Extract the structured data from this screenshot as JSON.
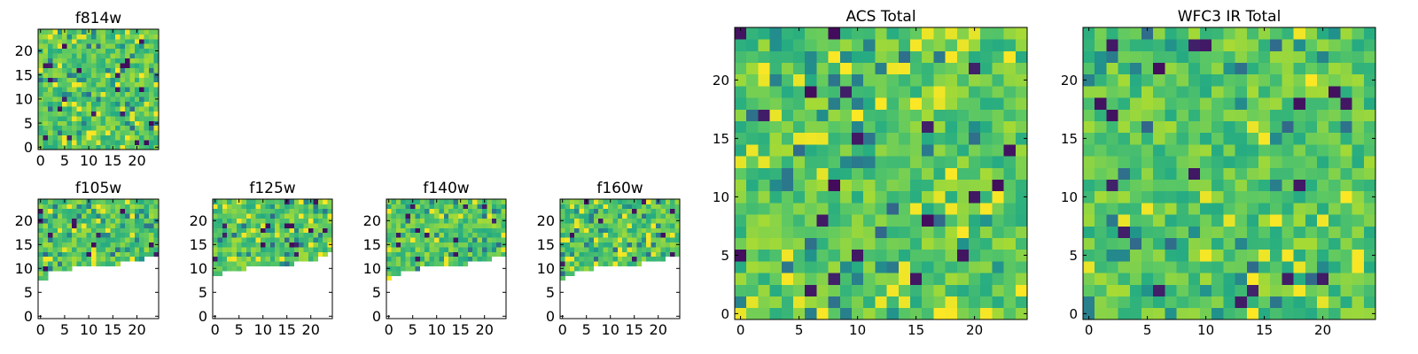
{
  "chart_data": [
    {
      "type": "heatmap",
      "title": "f814w",
      "xlabel": "",
      "ylabel": "",
      "xlim": [
        -0.5,
        24.5
      ],
      "ylim": [
        -0.5,
        24.5
      ],
      "xticks": [
        0,
        5,
        10,
        15,
        20
      ],
      "yticks": [
        0,
        5,
        10,
        15,
        20
      ],
      "xtick_labels": [
        "0",
        "5",
        "10",
        "15",
        "20"
      ],
      "ytick_labels": [
        "0",
        "5",
        "10",
        "15",
        "20"
      ],
      "grid_size": 25,
      "coverage": "full",
      "colormap": "viridis",
      "grid": false,
      "legend": "none"
    },
    {
      "type": "heatmap",
      "title": "f105w",
      "xlabel": "",
      "ylabel": "",
      "xlim": [
        -0.5,
        24.5
      ],
      "ylim": [
        -0.5,
        24.5
      ],
      "xticks": [
        0,
        5,
        10,
        15,
        20
      ],
      "yticks": [
        0,
        5,
        10,
        15,
        20
      ],
      "xtick_labels": [
        "0",
        "5",
        "10",
        "15",
        "20"
      ],
      "ytick_labels": [
        "0",
        "5",
        "10",
        "15",
        "20"
      ],
      "grid_size": 25,
      "coverage": "partial",
      "coverage_rows_min": [
        8,
        8,
        10,
        10,
        10,
        10,
        10,
        11,
        11,
        11,
        11,
        11,
        11,
        11,
        11,
        11,
        11,
        12,
        12,
        12,
        12,
        12,
        13,
        13,
        13
      ],
      "colormap": "viridis",
      "grid": false,
      "legend": "none"
    },
    {
      "type": "heatmap",
      "title": "f125w",
      "xlabel": "",
      "ylabel": "",
      "xlim": [
        -0.5,
        24.5
      ],
      "ylim": [
        -0.5,
        24.5
      ],
      "xticks": [
        0,
        5,
        10,
        15,
        20
      ],
      "yticks": [
        0,
        5,
        10,
        15,
        20
      ],
      "xtick_labels": [
        "0",
        "5",
        "10",
        "15",
        "20"
      ],
      "ytick_labels": [
        "0",
        "5",
        "10",
        "15",
        "20"
      ],
      "grid_size": 25,
      "coverage": "partial",
      "coverage_rows_min": [
        9,
        9,
        10,
        10,
        10,
        10,
        10,
        11,
        11,
        11,
        11,
        11,
        11,
        11,
        11,
        11,
        11,
        12,
        12,
        12,
        12,
        12,
        13,
        13,
        14
      ],
      "colormap": "viridis",
      "grid": false,
      "legend": "none"
    },
    {
      "type": "heatmap",
      "title": "f140w",
      "xlabel": "",
      "ylabel": "",
      "xlim": [
        -0.5,
        24.5
      ],
      "ylim": [
        -0.5,
        24.5
      ],
      "xticks": [
        0,
        5,
        10,
        15,
        20
      ],
      "yticks": [
        0,
        5,
        10,
        15,
        20
      ],
      "xtick_labels": [
        "0",
        "5",
        "10",
        "15",
        "20"
      ],
      "ytick_labels": [
        "0",
        "5",
        "10",
        "15",
        "20"
      ],
      "grid_size": 25,
      "coverage": "partial",
      "coverage_rows_min": [
        8,
        9,
        9,
        10,
        10,
        10,
        10,
        11,
        11,
        11,
        11,
        11,
        11,
        11,
        11,
        11,
        11,
        12,
        12,
        12,
        12,
        12,
        13,
        13,
        13
      ],
      "colormap": "viridis",
      "grid": false,
      "legend": "none"
    },
    {
      "type": "heatmap",
      "title": "f160w",
      "xlabel": "",
      "ylabel": "",
      "xlim": [
        -0.5,
        24.5
      ],
      "ylim": [
        -0.5,
        24.5
      ],
      "xticks": [
        0,
        5,
        10,
        15,
        20
      ],
      "yticks": [
        0,
        5,
        10,
        15,
        20
      ],
      "xtick_labels": [
        "0",
        "5",
        "10",
        "15",
        "20"
      ],
      "ytick_labels": [
        "0",
        "5",
        "10",
        "15",
        "20"
      ],
      "grid_size": 25,
      "coverage": "partial",
      "coverage_rows_min": [
        8,
        9,
        9,
        10,
        10,
        10,
        10,
        11,
        11,
        11,
        11,
        11,
        11,
        11,
        11,
        11,
        11,
        12,
        12,
        12,
        12,
        12,
        13,
        13,
        13
      ],
      "colormap": "viridis",
      "grid": false,
      "legend": "none"
    },
    {
      "type": "heatmap",
      "title": "ACS Total",
      "xlabel": "",
      "ylabel": "",
      "xlim": [
        -0.5,
        24.5
      ],
      "ylim": [
        -0.5,
        24.5
      ],
      "xticks": [
        0,
        5,
        10,
        15,
        20
      ],
      "yticks": [
        0,
        5,
        10,
        15,
        20
      ],
      "xtick_labels": [
        "0",
        "5",
        "10",
        "15",
        "20"
      ],
      "ytick_labels": [
        "0",
        "5",
        "10",
        "15",
        "20"
      ],
      "grid_size": 25,
      "coverage": "full",
      "colormap": "viridis",
      "grid": false,
      "legend": "none"
    },
    {
      "type": "heatmap",
      "title": "WFC3 IR Total",
      "xlabel": "",
      "ylabel": "",
      "xlim": [
        -0.5,
        24.5
      ],
      "ylim": [
        -0.5,
        24.5
      ],
      "xticks": [
        0,
        5,
        10,
        15,
        20
      ],
      "yticks": [
        0,
        5,
        10,
        15,
        20
      ],
      "xtick_labels": [
        "0",
        "5",
        "10",
        "15",
        "20"
      ],
      "ytick_labels": [
        "0",
        "5",
        "10",
        "15",
        "20"
      ],
      "grid_size": 25,
      "coverage": "full",
      "colormap": "viridis",
      "grid": false,
      "legend": "none"
    }
  ],
  "colors": {
    "viridis": [
      "#440154",
      "#3b528b",
      "#21918c",
      "#27ad81",
      "#5ec962",
      "#addc30",
      "#fde725"
    ]
  }
}
